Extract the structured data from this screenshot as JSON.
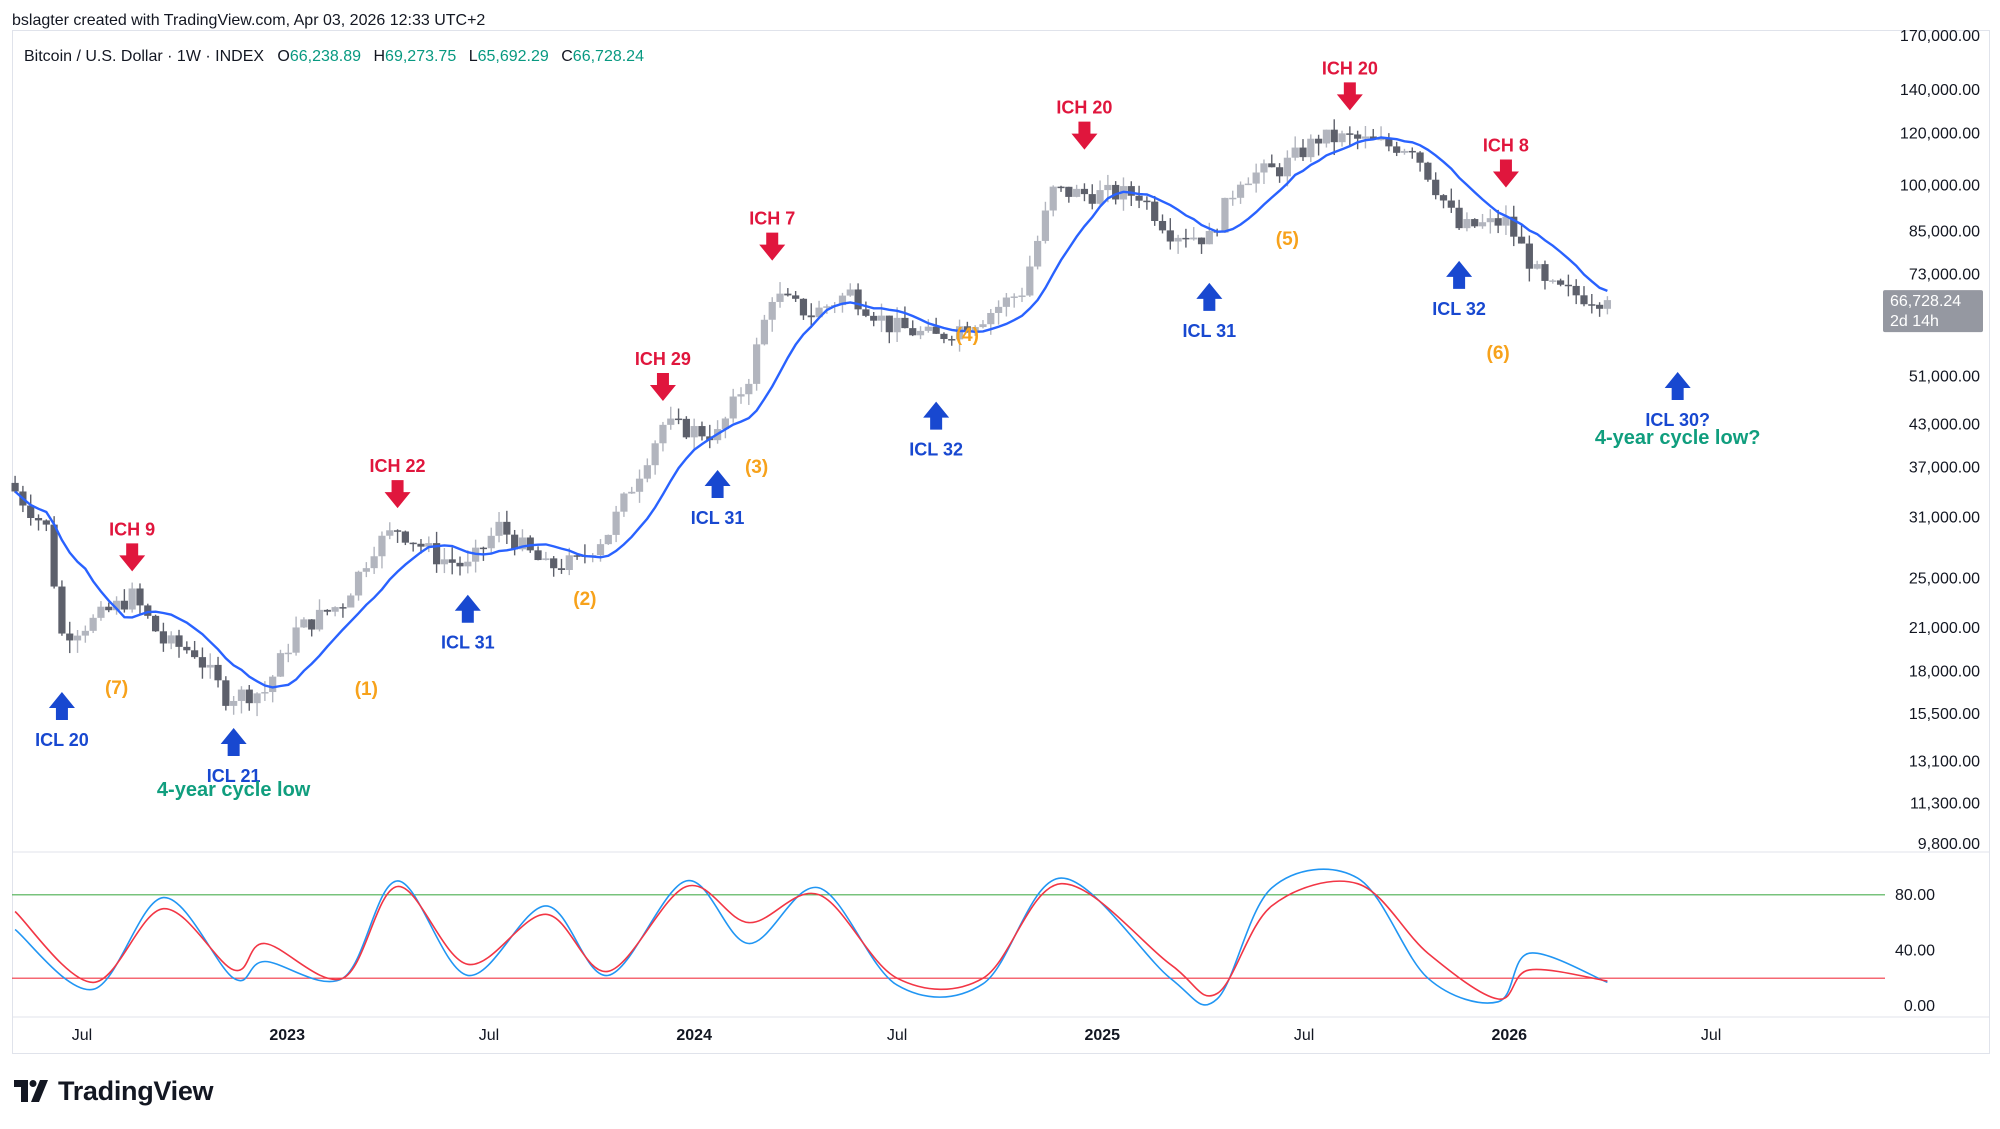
{
  "header": {
    "credit": "bslagter created with TradingView.com, Apr 03, 2026 12:33 UTC+2",
    "symbol": "Bitcoin / U.S. Dollar · 1W · INDEX",
    "open_label": "O",
    "open": "66,238.89",
    "high_label": "H",
    "high": "69,273.75",
    "low_label": "L",
    "low": "65,692.29",
    "close_label": "C",
    "close": "66,728.24"
  },
  "price_axis": {
    "ticks": [
      "170,000.00",
      "140,000.00",
      "120,000.00",
      "100,000.00",
      "85,000.00",
      "73,000.00",
      "51,000.00",
      "43,000.00",
      "37,000.00",
      "31,000.00",
      "25,000.00",
      "21,000.00",
      "18,000.00",
      "15,500.00",
      "13,100.00",
      "11,300.00",
      "9,800.00"
    ],
    "last_price": "66,728.24",
    "countdown": "2d 14h",
    "scale": "log"
  },
  "oscillator_axis": {
    "ticks": [
      "80.00",
      "40.00",
      "0.00"
    ],
    "upper_level": 80,
    "lower_level": 20
  },
  "time_axis": {
    "labels": [
      {
        "text": "Jul",
        "bold": false
      },
      {
        "text": "2023",
        "bold": true
      },
      {
        "text": "Jul",
        "bold": false
      },
      {
        "text": "2024",
        "bold": true
      },
      {
        "text": "Jul",
        "bold": false
      },
      {
        "text": "2025",
        "bold": true
      },
      {
        "text": "Jul",
        "bold": false
      },
      {
        "text": "2026",
        "bold": true
      },
      {
        "text": "Jul",
        "bold": false
      }
    ]
  },
  "annotations": {
    "cycle_highs": [
      {
        "label": "ICH 9",
        "date": "2022-08-15",
        "price": 24400
      },
      {
        "label": "ICH 22",
        "date": "2023-04-10",
        "price": 30500
      },
      {
        "label": "ICH 29",
        "date": "2023-12-04",
        "price": 44500
      },
      {
        "label": "ICH 7",
        "date": "2024-03-11",
        "price": 73000
      },
      {
        "label": "ICH 20",
        "date": "2024-12-16",
        "price": 108000
      },
      {
        "label": "ICH 20",
        "date": "2025-08-11",
        "price": 124000
      },
      {
        "label": "ICH 8",
        "date": "2025-12-29",
        "price": 94500
      }
    ],
    "cycle_lows": [
      {
        "label": "ICL 20",
        "date": "2022-06-13",
        "price": 17600
      },
      {
        "label": "ICL 21",
        "date": "2022-11-14",
        "price": 15500
      },
      {
        "label": "ICL 31",
        "date": "2023-06-12",
        "price": 24800
      },
      {
        "label": "ICL 31",
        "date": "2024-01-22",
        "price": 38500
      },
      {
        "label": "ICL 32",
        "date": "2024-08-05",
        "price": 49000
      },
      {
        "label": "ICL 31",
        "date": "2025-04-07",
        "price": 74500
      },
      {
        "label": "ICL 32",
        "date": "2025-11-17",
        "price": 80500
      },
      {
        "label": "ICL 30?",
        "date": "2026-06-01",
        "price": null
      }
    ],
    "cycle_counts": [
      "(7)",
      "(1)",
      "(2)",
      "(3)",
      "(4)",
      "(5)",
      "(6)"
    ],
    "notes": [
      "4-year cycle low",
      "4-year cycle low?"
    ]
  },
  "colors": {
    "up_candle": "#b2b5be",
    "down_candle": "#5d606b",
    "moving_average": "#2962ff",
    "cycle_high": "#e0163d",
    "cycle_low": "#1848d0",
    "cycle_count": "#f7a21b",
    "cycle_note": "#109e7e",
    "stoch_k": "#2196f3",
    "stoch_d": "#f23645",
    "upper_band": "#4caf50",
    "lower_band": "#f23645"
  },
  "chart_data": {
    "type": "candlestick",
    "title": "Bitcoin / U.S. Dollar · 1W · INDEX",
    "interval": "1W",
    "x_range": [
      "2022-05-02",
      "2026-03-30"
    ],
    "y_range": [
      9800,
      170000
    ],
    "y_scale": "log",
    "series": [
      {
        "name": "weekly close",
        "approx": true,
        "points": [
          [
            "2022-05-02",
            34000
          ],
          [
            "2022-05-30",
            29900
          ],
          [
            "2022-06-13",
            20500
          ],
          [
            "2022-07-11",
            21500
          ],
          [
            "2022-08-15",
            23500
          ],
          [
            "2022-09-12",
            20000
          ],
          [
            "2022-10-10",
            19300
          ],
          [
            "2022-11-07",
            16500
          ],
          [
            "2022-12-12",
            16800
          ],
          [
            "2023-01-09",
            20800
          ],
          [
            "2023-02-20",
            23000
          ],
          [
            "2023-03-20",
            28000
          ],
          [
            "2023-04-10",
            29800
          ],
          [
            "2023-05-15",
            27000
          ],
          [
            "2023-06-12",
            26000
          ],
          [
            "2023-07-10",
            30000
          ],
          [
            "2023-08-21",
            26000
          ],
          [
            "2023-09-18",
            26500
          ],
          [
            "2023-10-16",
            29500
          ],
          [
            "2023-11-13",
            36500
          ],
          [
            "2023-12-04",
            43000
          ],
          [
            "2024-01-22",
            41500
          ],
          [
            "2024-02-19",
            51000
          ],
          [
            "2024-03-11",
            68000
          ],
          [
            "2024-04-15",
            63500
          ],
          [
            "2024-05-20",
            68500
          ],
          [
            "2024-06-24",
            61000
          ],
          [
            "2024-08-05",
            58500
          ],
          [
            "2024-09-16",
            63000
          ],
          [
            "2024-10-21",
            69000
          ],
          [
            "2024-11-18",
            98000
          ],
          [
            "2024-12-16",
            97000
          ],
          [
            "2025-02-03",
            97000
          ],
          [
            "2025-03-03",
            85000
          ],
          [
            "2025-04-07",
            83000
          ],
          [
            "2025-05-05",
            103000
          ],
          [
            "2025-06-09",
            106000
          ],
          [
            "2025-07-14",
            118000
          ],
          [
            "2025-08-11",
            118000
          ],
          [
            "2025-09-15",
            115000
          ],
          [
            "2025-10-06",
            115000
          ],
          [
            "2025-11-17",
            86000
          ],
          [
            "2025-12-29",
            88000
          ],
          [
            "2026-02-02",
            70000
          ],
          [
            "2026-03-02",
            68000
          ],
          [
            "2026-03-30",
            66728.24
          ]
        ]
      },
      {
        "name": "stochastic %K",
        "approx": true,
        "points": [
          [
            "2022-05-02",
            55
          ],
          [
            "2022-07-11",
            12
          ],
          [
            "2022-09-12",
            78
          ],
          [
            "2022-11-14",
            20
          ],
          [
            "2022-12-12",
            32
          ],
          [
            "2023-02-20",
            20
          ],
          [
            "2023-04-10",
            90
          ],
          [
            "2023-06-12",
            22
          ],
          [
            "2023-08-21",
            72
          ],
          [
            "2023-10-16",
            22
          ],
          [
            "2023-12-25",
            90
          ],
          [
            "2024-02-19",
            45
          ],
          [
            "2024-04-22",
            85
          ],
          [
            "2024-07-01",
            15
          ],
          [
            "2024-09-16",
            16
          ],
          [
            "2024-11-25",
            92
          ],
          [
            "2025-03-03",
            20
          ],
          [
            "2025-04-14",
            5
          ],
          [
            "2025-06-02",
            85
          ],
          [
            "2025-08-18",
            92
          ],
          [
            "2025-10-20",
            20
          ],
          [
            "2025-12-22",
            3
          ],
          [
            "2026-01-19",
            38
          ],
          [
            "2026-03-30",
            17
          ]
        ]
      },
      {
        "name": "stochastic %D",
        "approx": true,
        "points": [
          [
            "2022-05-02",
            68
          ],
          [
            "2022-07-11",
            17
          ],
          [
            "2022-09-12",
            70
          ],
          [
            "2022-11-14",
            26
          ],
          [
            "2022-12-12",
            45
          ],
          [
            "2023-02-20",
            20
          ],
          [
            "2023-04-10",
            86
          ],
          [
            "2023-06-12",
            30
          ],
          [
            "2023-08-21",
            66
          ],
          [
            "2023-10-16",
            25
          ],
          [
            "2023-12-25",
            86
          ],
          [
            "2024-02-19",
            60
          ],
          [
            "2024-04-22",
            80
          ],
          [
            "2024-07-01",
            20
          ],
          [
            "2024-09-16",
            20
          ],
          [
            "2024-11-25",
            88
          ],
          [
            "2025-03-03",
            30
          ],
          [
            "2025-04-14",
            9
          ],
          [
            "2025-06-02",
            72
          ],
          [
            "2025-08-18",
            88
          ],
          [
            "2025-10-20",
            38
          ],
          [
            "2025-12-22",
            5
          ],
          [
            "2026-01-19",
            26
          ],
          [
            "2026-03-30",
            18
          ]
        ]
      }
    ]
  }
}
